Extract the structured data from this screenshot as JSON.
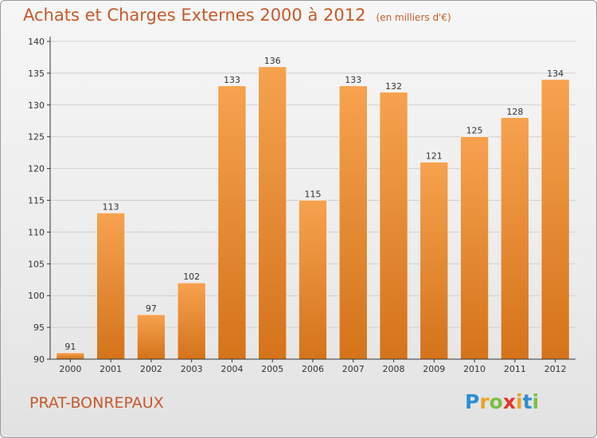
{
  "title": "Achats et Charges Externes 2000 à 2012",
  "subtitle": "(en milliers d'€)",
  "commune": "PRAT-BONREPAUX",
  "logo": {
    "letters": [
      "P",
      "r",
      "o",
      "x",
      "i",
      "t",
      "i"
    ],
    "colors": [
      "#2a8fd6",
      "#f0a020",
      "#7ac043",
      "#e6332a",
      "#f0a020",
      "#2a8fd6",
      "#7ac043"
    ]
  },
  "colors": {
    "bar_light": "#f6a24f",
    "bar_dark": "#d4731a",
    "text": "#c55a2a",
    "axis": "#333333",
    "grid": "#cfcfcf"
  },
  "chart_data": {
    "type": "bar",
    "title": "Achats et Charges Externes 2000 à 2012",
    "subtitle": "(en milliers d'€)",
    "categories": [
      "2000",
      "2001",
      "2002",
      "2003",
      "2004",
      "2005",
      "2006",
      "2007",
      "2008",
      "2009",
      "2010",
      "2011",
      "2012"
    ],
    "values": [
      91,
      113,
      97,
      102,
      133,
      136,
      115,
      133,
      132,
      121,
      125,
      128,
      134
    ],
    "ylim": [
      90,
      140
    ],
    "yticks": [
      90,
      95,
      100,
      105,
      110,
      115,
      120,
      125,
      130,
      135,
      140
    ],
    "grid": true,
    "xlabel": "",
    "ylabel": ""
  }
}
